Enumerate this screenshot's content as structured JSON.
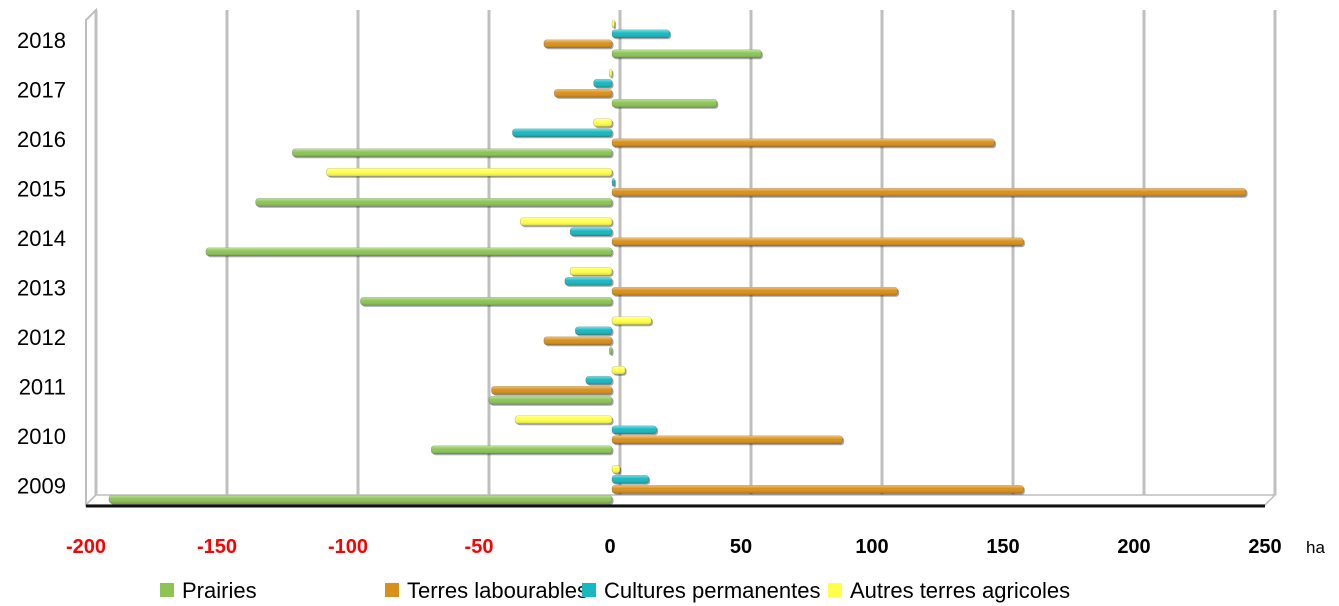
{
  "chart_data": {
    "type": "bar",
    "orientation": "horizontal",
    "unit": "ha",
    "categories": [
      "2009",
      "2010",
      "2011",
      "2012",
      "2013",
      "2014",
      "2015",
      "2016",
      "2017",
      "2018"
    ],
    "series": [
      {
        "name": "Prairies",
        "color": "#8cc556",
        "values": [
          -192,
          -69,
          -47,
          -1,
          -96,
          -155,
          -136,
          -122,
          40,
          57
        ]
      },
      {
        "name": "Terres labourables",
        "color": "#d9901a",
        "values": [
          157,
          88,
          -46,
          -26,
          109,
          157,
          242,
          146,
          -22,
          -26
        ]
      },
      {
        "name": "Cultures permanentes",
        "color": "#18b8c0",
        "values": [
          14,
          17,
          -10,
          -14,
          -18,
          -16,
          1,
          -38,
          -7,
          22
        ]
      },
      {
        "name": "Autres terres agricoles",
        "color": "#ffff4a",
        "values": [
          3,
          -37,
          5,
          15,
          -16,
          -35,
          -109,
          -7,
          -1,
          1
        ]
      }
    ],
    "xlim": [
      -200,
      250
    ],
    "ticks": [
      {
        "label": "-200",
        "value": -200,
        "color": "#ff0000"
      },
      {
        "label": "-150",
        "value": -150,
        "color": "#ff0000"
      },
      {
        "label": "-100",
        "value": -100,
        "color": "#ff0000"
      },
      {
        "label": "-50",
        "value": -50,
        "color": "#ff0000"
      },
      {
        "label": "0",
        "value": 0,
        "color": "#000000"
      },
      {
        "label": "50",
        "value": 50,
        "color": "#000000"
      },
      {
        "label": "100",
        "value": 100,
        "color": "#000000"
      },
      {
        "label": "150",
        "value": 150,
        "color": "#000000"
      },
      {
        "label": "200",
        "value": 200,
        "color": "#000000"
      },
      {
        "label": "250",
        "value": 250,
        "color": "#000000"
      }
    ],
    "grid": true,
    "legend_position": "bottom"
  }
}
